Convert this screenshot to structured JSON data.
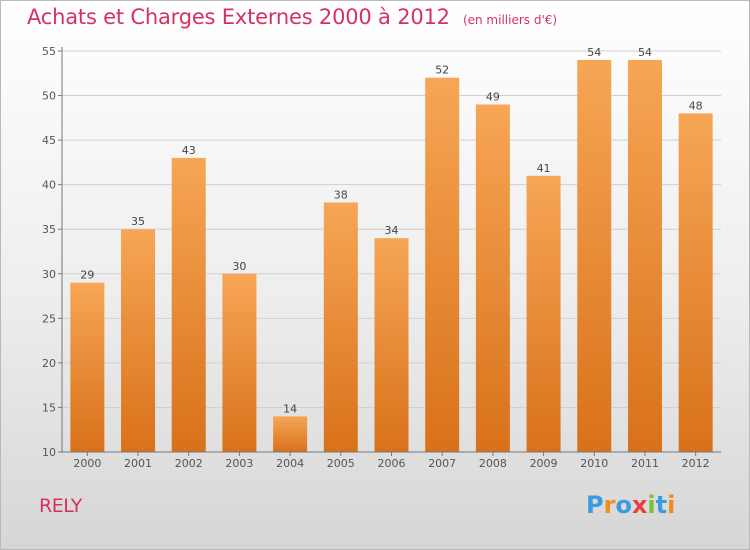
{
  "title": "Achats et Charges Externes 2000 à 2012",
  "unit": "(en milliers d'€)",
  "place": "RELY",
  "logo": {
    "text": "Proxiti",
    "letters": [
      {
        "ch": "P",
        "color": "#3a9be0"
      },
      {
        "ch": "r",
        "color": "#f28b20"
      },
      {
        "ch": "o",
        "color": "#3a9be0"
      },
      {
        "ch": "x",
        "color": "#e64040"
      },
      {
        "ch": "i",
        "color": "#7cbf3c"
      },
      {
        "ch": "t",
        "color": "#3a9be0"
      },
      {
        "ch": "i",
        "color": "#f28b20"
      }
    ]
  },
  "colors": {
    "title": "#d5335f",
    "bar_top": "#f6a655",
    "bar_bottom": "#d9711a",
    "grid": "#d0d0d0"
  },
  "chart_data": {
    "type": "bar",
    "title": "Achats et Charges Externes 2000 à 2012",
    "xlabel": "",
    "ylabel": "",
    "categories": [
      "2000",
      "2001",
      "2002",
      "2003",
      "2004",
      "2005",
      "2006",
      "2007",
      "2008",
      "2009",
      "2010",
      "2011",
      "2012"
    ],
    "values": [
      29,
      35,
      43,
      30,
      14,
      38,
      34,
      52,
      49,
      41,
      54,
      54,
      48
    ],
    "ylim": [
      10,
      55
    ],
    "yticks": [
      10,
      15,
      20,
      25,
      30,
      35,
      40,
      45,
      50,
      55
    ],
    "grid": true,
    "data_labels": true
  }
}
